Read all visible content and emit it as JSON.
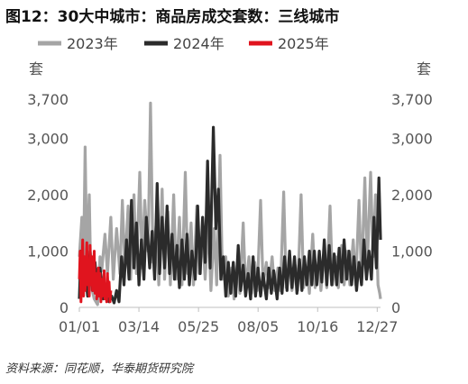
{
  "title": "图12：30大中城市：商品房成交套数：三线城市",
  "source": "资料来源：同花顺，华泰期货研究院",
  "colors": {
    "2023年": "#a5a5a5",
    "2024年": "#2b2b2b",
    "2025年": "#e0141e"
  },
  "chart_data": {
    "type": "line",
    "ylabel_left": "套",
    "ylabel_right": "套",
    "ylim": [
      0,
      3700
    ],
    "yticks": [
      0,
      1000,
      2000,
      3000,
      3700
    ],
    "ytick_labels": [
      "0",
      "1,000",
      "2,000",
      "3,000",
      "3,700"
    ],
    "xticks": [
      1,
      73,
      145,
      217,
      289,
      361
    ],
    "xtick_labels": [
      "01/01",
      "03/14",
      "05/25",
      "08/05",
      "10/16",
      "12/27"
    ],
    "x_unit": "day-of-year",
    "legend_position": "top",
    "series": [
      {
        "name": "2023年",
        "anchors": [
          [
            1,
            900
          ],
          [
            4,
            1600
          ],
          [
            6,
            700
          ],
          [
            8,
            2850
          ],
          [
            10,
            800
          ],
          [
            13,
            2000
          ],
          [
            15,
            400
          ],
          [
            19,
            150
          ],
          [
            23,
            50
          ],
          [
            26,
            900
          ],
          [
            28,
            650
          ],
          [
            32,
            1300
          ],
          [
            35,
            600
          ],
          [
            39,
            1600
          ],
          [
            42,
            500
          ],
          [
            46,
            1400
          ],
          [
            50,
            600
          ],
          [
            53,
            1900
          ],
          [
            56,
            700
          ],
          [
            60,
            1800
          ],
          [
            63,
            500
          ],
          [
            67,
            2000
          ],
          [
            70,
            600
          ],
          [
            74,
            2400
          ],
          [
            77,
            700
          ],
          [
            80,
            1900
          ],
          [
            84,
            1000
          ],
          [
            87,
            3630
          ],
          [
            90,
            800
          ],
          [
            94,
            1500
          ],
          [
            97,
            400
          ],
          [
            101,
            2100
          ],
          [
            104,
            500
          ],
          [
            108,
            1700
          ],
          [
            111,
            400
          ],
          [
            115,
            2000
          ],
          [
            118,
            500
          ],
          [
            122,
            1600
          ],
          [
            125,
            400
          ],
          [
            129,
            2400
          ],
          [
            132,
            600
          ],
          [
            136,
            1500
          ],
          [
            139,
            400
          ],
          [
            143,
            1800
          ],
          [
            146,
            600
          ],
          [
            150,
            1300
          ],
          [
            153,
            500
          ],
          [
            157,
            1500
          ],
          [
            160,
            300
          ],
          [
            164,
            1400
          ],
          [
            167,
            400
          ],
          [
            171,
            2700
          ],
          [
            174,
            500
          ],
          [
            178,
            900
          ],
          [
            181,
            200
          ],
          [
            185,
            700
          ],
          [
            188,
            150
          ],
          [
            192,
            800
          ],
          [
            195,
            250
          ],
          [
            199,
            1500
          ],
          [
            202,
            300
          ],
          [
            206,
            900
          ],
          [
            209,
            250
          ],
          [
            213,
            800
          ],
          [
            216,
            300
          ],
          [
            220,
            1900
          ],
          [
            223,
            400
          ],
          [
            227,
            800
          ],
          [
            230,
            350
          ],
          [
            234,
            900
          ],
          [
            237,
            300
          ],
          [
            241,
            700
          ],
          [
            244,
            300
          ],
          [
            248,
            2050
          ],
          [
            251,
            350
          ],
          [
            255,
            800
          ],
          [
            258,
            300
          ],
          [
            262,
            750
          ],
          [
            265,
            300
          ],
          [
            269,
            2000
          ],
          [
            272,
            350
          ],
          [
            276,
            700
          ],
          [
            279,
            250
          ],
          [
            283,
            1300
          ],
          [
            286,
            350
          ],
          [
            290,
            800
          ],
          [
            293,
            300
          ],
          [
            297,
            1000
          ],
          [
            300,
            350
          ],
          [
            304,
            1800
          ],
          [
            307,
            400
          ],
          [
            311,
            900
          ],
          [
            314,
            350
          ],
          [
            318,
            1100
          ],
          [
            321,
            400
          ],
          [
            325,
            1000
          ],
          [
            328,
            400
          ],
          [
            332,
            1200
          ],
          [
            335,
            400
          ],
          [
            339,
            1900
          ],
          [
            342,
            500
          ],
          [
            346,
            2300
          ],
          [
            349,
            700
          ],
          [
            353,
            2400
          ],
          [
            356,
            900
          ],
          [
            359,
            2000
          ],
          [
            362,
            400
          ],
          [
            364,
            250
          ],
          [
            365,
            150
          ]
        ]
      },
      {
        "name": "2024年",
        "anchors": [
          [
            1,
            150
          ],
          [
            3,
            1000
          ],
          [
            6,
            400
          ],
          [
            8,
            700
          ],
          [
            11,
            200
          ],
          [
            14,
            1000
          ],
          [
            17,
            300
          ],
          [
            20,
            800
          ],
          [
            23,
            200
          ],
          [
            26,
            700
          ],
          [
            30,
            150
          ],
          [
            34,
            350
          ],
          [
            37,
            100
          ],
          [
            40,
            200
          ],
          [
            43,
            80
          ],
          [
            46,
            300
          ],
          [
            49,
            100
          ],
          [
            52,
            900
          ],
          [
            55,
            400
          ],
          [
            58,
            1200
          ],
          [
            61,
            500
          ],
          [
            64,
            1900
          ],
          [
            67,
            700
          ],
          [
            70,
            1500
          ],
          [
            73,
            400
          ],
          [
            76,
            1200
          ],
          [
            79,
            500
          ],
          [
            82,
            1600
          ],
          [
            86,
            700
          ],
          [
            89,
            1350
          ],
          [
            92,
            500
          ],
          [
            95,
            2200
          ],
          [
            98,
            600
          ],
          [
            101,
            1600
          ],
          [
            104,
            700
          ],
          [
            107,
            1800
          ],
          [
            110,
            600
          ],
          [
            113,
            1300
          ],
          [
            116,
            500
          ],
          [
            119,
            1100
          ],
          [
            122,
            350
          ],
          [
            125,
            1200
          ],
          [
            128,
            500
          ],
          [
            131,
            1300
          ],
          [
            134,
            400
          ],
          [
            137,
            1000
          ],
          [
            141,
            500
          ],
          [
            144,
            1800
          ],
          [
            147,
            600
          ],
          [
            150,
            1600
          ],
          [
            153,
            800
          ],
          [
            156,
            2600
          ],
          [
            159,
            700
          ],
          [
            163,
            3200
          ],
          [
            166,
            1400
          ],
          [
            169,
            2100
          ],
          [
            172,
            500
          ],
          [
            175,
            900
          ],
          [
            178,
            200
          ],
          [
            181,
            800
          ],
          [
            184,
            250
          ],
          [
            187,
            800
          ],
          [
            190,
            200
          ],
          [
            193,
            1100
          ],
          [
            196,
            300
          ],
          [
            199,
            750
          ],
          [
            202,
            200
          ],
          [
            205,
            600
          ],
          [
            208,
            150
          ],
          [
            211,
            900
          ],
          [
            214,
            200
          ],
          [
            217,
            700
          ],
          [
            220,
            200
          ],
          [
            223,
            600
          ],
          [
            227,
            150
          ],
          [
            230,
            700
          ],
          [
            233,
            250
          ],
          [
            236,
            650
          ],
          [
            240,
            150
          ],
          [
            243,
            700
          ],
          [
            246,
            250
          ],
          [
            249,
            900
          ],
          [
            252,
            300
          ],
          [
            255,
            1000
          ],
          [
            258,
            350
          ],
          [
            261,
            900
          ],
          [
            264,
            250
          ],
          [
            267,
            850
          ],
          [
            270,
            300
          ],
          [
            273,
            900
          ],
          [
            276,
            400
          ],
          [
            279,
            1000
          ],
          [
            282,
            400
          ],
          [
            285,
            1000
          ],
          [
            288,
            400
          ],
          [
            291,
            1000
          ],
          [
            294,
            450
          ],
          [
            297,
            1200
          ],
          [
            300,
            400
          ],
          [
            303,
            1100
          ],
          [
            306,
            400
          ],
          [
            309,
            950
          ],
          [
            312,
            400
          ],
          [
            315,
            1050
          ],
          [
            318,
            450
          ],
          [
            321,
            1200
          ],
          [
            324,
            500
          ],
          [
            327,
            1000
          ],
          [
            330,
            400
          ],
          [
            333,
            900
          ],
          [
            336,
            300
          ],
          [
            339,
            800
          ],
          [
            342,
            400
          ],
          [
            345,
            1200
          ],
          [
            348,
            500
          ],
          [
            351,
            1000
          ],
          [
            354,
            500
          ],
          [
            357,
            1600
          ],
          [
            360,
            700
          ],
          [
            363,
            2300
          ],
          [
            365,
            1200
          ]
        ]
      },
      {
        "name": "2025年",
        "anchors": [
          [
            1,
            500
          ],
          [
            2,
            1000
          ],
          [
            3,
            100
          ],
          [
            4,
            700
          ],
          [
            5,
            1200
          ],
          [
            6,
            200
          ],
          [
            7,
            900
          ],
          [
            8,
            300
          ],
          [
            9,
            700
          ],
          [
            10,
            1150
          ],
          [
            11,
            400
          ],
          [
            12,
            800
          ],
          [
            13,
            200
          ],
          [
            14,
            1100
          ],
          [
            15,
            400
          ],
          [
            16,
            900
          ],
          [
            17,
            300
          ],
          [
            18,
            700
          ],
          [
            19,
            1000
          ],
          [
            20,
            250
          ],
          [
            21,
            600
          ],
          [
            22,
            150
          ],
          [
            23,
            500
          ],
          [
            24,
            700
          ],
          [
            25,
            200
          ],
          [
            26,
            600
          ],
          [
            27,
            100
          ],
          [
            28,
            500
          ],
          [
            29,
            200
          ],
          [
            30,
            350
          ],
          [
            31,
            650
          ],
          [
            32,
            150
          ],
          [
            33,
            400
          ],
          [
            34,
            100
          ],
          [
            35,
            600
          ],
          [
            36,
            200
          ],
          [
            37,
            450
          ],
          [
            38,
            100
          ],
          [
            39,
            300
          ]
        ]
      }
    ]
  }
}
